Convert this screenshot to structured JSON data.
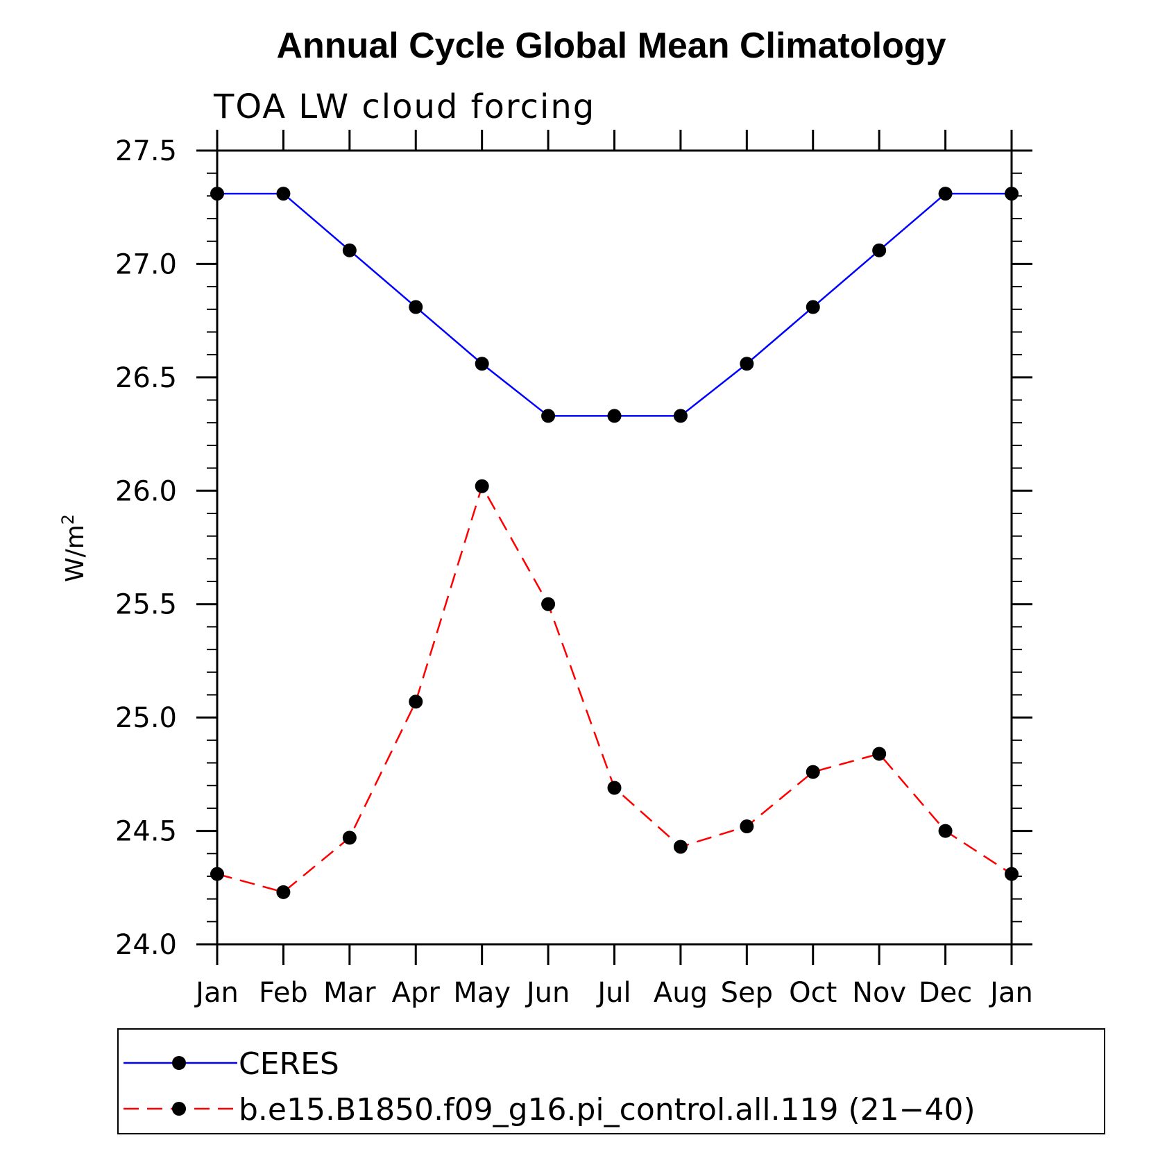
{
  "chart_data": {
    "type": "line",
    "title": "Annual Cycle Global Mean Climatology",
    "subtitle": "TOA LW cloud forcing",
    "xlabel": "",
    "ylabel": "W/m",
    "ylabel_superscript": "2",
    "categories": [
      "Jan",
      "Feb",
      "Mar",
      "Apr",
      "May",
      "Jun",
      "Jul",
      "Aug",
      "Sep",
      "Oct",
      "Nov",
      "Dec",
      "Jan"
    ],
    "ylim": [
      24.0,
      27.5
    ],
    "yticks": [
      "24.0",
      "24.5",
      "25.0",
      "25.5",
      "26.0",
      "26.5",
      "27.0",
      "27.5"
    ],
    "grid": false,
    "legend_position": "bottom",
    "series": [
      {
        "name": "CERES",
        "color": "#0000ff",
        "line_style": "solid",
        "marker": "circle",
        "values": [
          27.31,
          27.31,
          27.06,
          26.81,
          26.56,
          26.33,
          26.33,
          26.33,
          26.56,
          26.81,
          27.06,
          27.31,
          27.31
        ]
      },
      {
        "name": "b.e15.B1850.f09_g16.pi_control.all.119 (21−40)",
        "color": "#ff0000",
        "line_style": "dashed",
        "marker": "circle",
        "values": [
          24.31,
          24.23,
          24.47,
          25.07,
          26.02,
          25.5,
          24.69,
          24.43,
          24.52,
          24.76,
          24.84,
          24.5,
          24.31
        ]
      }
    ]
  }
}
